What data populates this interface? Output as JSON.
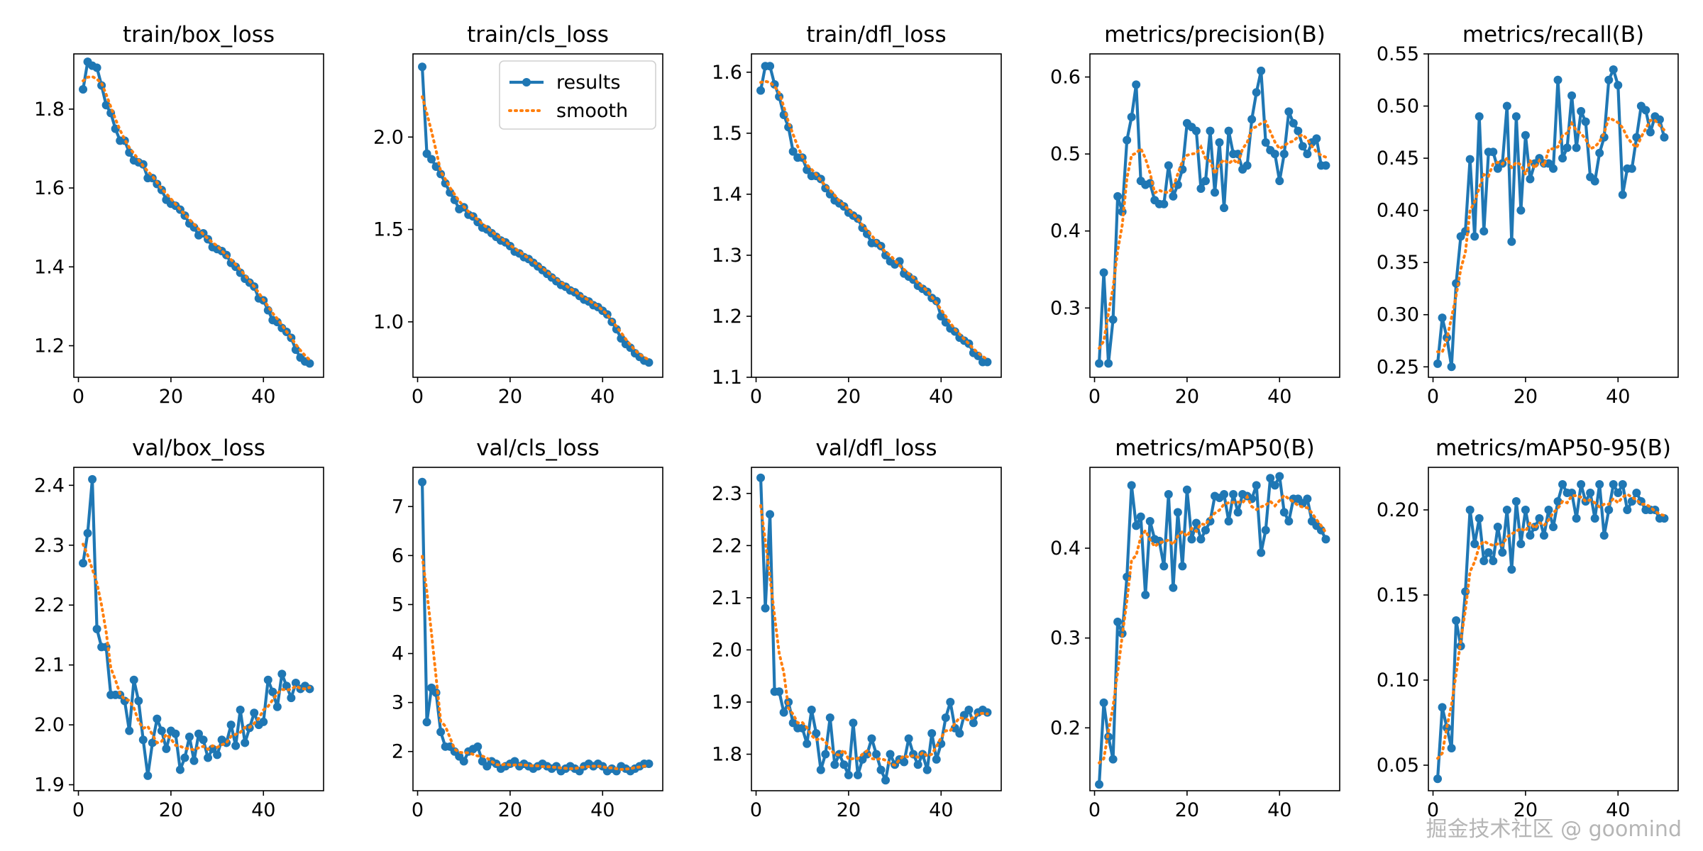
{
  "watermark": "掘金技术社区 @ goomind",
  "legend": {
    "labels": [
      "results",
      "smooth"
    ],
    "panel": "train/cls_loss",
    "placement": "top-right"
  },
  "colors": {
    "results": "#1f77b4",
    "smooth": "#ff7f0e",
    "axis": "#000000"
  },
  "chart_data": [
    {
      "type": "line",
      "title": "train/box_loss",
      "xlim": [
        -1,
        53
      ],
      "ylim": [
        1.12,
        1.94
      ],
      "xticks": [
        "0",
        "20",
        "40"
      ],
      "xtickvals": [
        0,
        20,
        40
      ],
      "yticks": [
        "1.2",
        "1.4",
        "1.6",
        "1.8"
      ],
      "ytickvals": [
        1.2,
        1.4,
        1.6,
        1.8
      ],
      "series": [
        {
          "name": "results",
          "values": [
            1.85,
            1.92,
            1.91,
            1.905,
            1.86,
            1.81,
            1.79,
            1.75,
            1.72,
            1.72,
            1.69,
            1.67,
            1.665,
            1.66,
            1.625,
            1.625,
            1.61,
            1.595,
            1.57,
            1.56,
            1.555,
            1.545,
            1.53,
            1.51,
            1.5,
            1.48,
            1.485,
            1.47,
            1.45,
            1.445,
            1.44,
            1.43,
            1.41,
            1.4,
            1.385,
            1.37,
            1.36,
            1.35,
            1.32,
            1.315,
            1.29,
            1.265,
            1.26,
            1.245,
            1.235,
            1.22,
            1.19,
            1.17,
            1.16,
            1.155
          ]
        }
      ]
    },
    {
      "type": "line",
      "title": "train/cls_loss",
      "xlim": [
        -1,
        53
      ],
      "ylim": [
        0.7,
        2.45
      ],
      "xticks": [
        "0",
        "20",
        "40"
      ],
      "xtickvals": [
        0,
        20,
        40
      ],
      "yticks": [
        "1.0",
        "1.5",
        "2.0"
      ],
      "ytickvals": [
        1.0,
        1.5,
        2.0
      ],
      "series": [
        {
          "name": "results",
          "values": [
            2.38,
            1.91,
            1.88,
            1.84,
            1.8,
            1.75,
            1.7,
            1.66,
            1.61,
            1.62,
            1.58,
            1.57,
            1.54,
            1.51,
            1.5,
            1.48,
            1.46,
            1.44,
            1.43,
            1.41,
            1.38,
            1.37,
            1.35,
            1.34,
            1.32,
            1.3,
            1.28,
            1.26,
            1.24,
            1.22,
            1.2,
            1.19,
            1.17,
            1.16,
            1.14,
            1.12,
            1.11,
            1.09,
            1.08,
            1.06,
            1.04,
            1.0,
            0.96,
            0.91,
            0.88,
            0.86,
            0.83,
            0.81,
            0.79,
            0.78
          ]
        }
      ]
    },
    {
      "type": "line",
      "title": "train/dfl_loss",
      "xlim": [
        -1,
        53
      ],
      "ylim": [
        1.1,
        1.63
      ],
      "xticks": [
        "0",
        "20",
        "40"
      ],
      "xtickvals": [
        0,
        20,
        40
      ],
      "yticks": [
        "1.1",
        "1.2",
        "1.3",
        "1.4",
        "1.5",
        "1.6"
      ],
      "ytickvals": [
        1.1,
        1.2,
        1.3,
        1.4,
        1.5,
        1.6
      ],
      "series": [
        {
          "name": "results",
          "values": [
            1.57,
            1.61,
            1.61,
            1.58,
            1.56,
            1.53,
            1.51,
            1.47,
            1.46,
            1.46,
            1.44,
            1.43,
            1.43,
            1.425,
            1.41,
            1.4,
            1.39,
            1.385,
            1.38,
            1.37,
            1.365,
            1.36,
            1.345,
            1.335,
            1.32,
            1.32,
            1.315,
            1.3,
            1.29,
            1.285,
            1.29,
            1.27,
            1.265,
            1.26,
            1.25,
            1.245,
            1.24,
            1.23,
            1.225,
            1.2,
            1.19,
            1.18,
            1.175,
            1.165,
            1.16,
            1.155,
            1.14,
            1.135,
            1.125,
            1.125
          ]
        }
      ]
    },
    {
      "type": "line",
      "title": "metrics/precision(B)",
      "xlim": [
        -1,
        53
      ],
      "ylim": [
        0.21,
        0.63
      ],
      "xticks": [
        "0",
        "20",
        "40"
      ],
      "xtickvals": [
        0,
        20,
        40
      ],
      "yticks": [
        "0.3",
        "0.4",
        "0.5",
        "0.6"
      ],
      "ytickvals": [
        0.3,
        0.4,
        0.5,
        0.6
      ],
      "series": [
        {
          "name": "results",
          "values": [
            0.228,
            0.346,
            0.228,
            0.285,
            0.445,
            0.425,
            0.518,
            0.548,
            0.59,
            0.465,
            0.46,
            0.462,
            0.44,
            0.435,
            0.435,
            0.485,
            0.445,
            0.46,
            0.48,
            0.54,
            0.535,
            0.53,
            0.455,
            0.465,
            0.53,
            0.45,
            0.515,
            0.43,
            0.53,
            0.5,
            0.5,
            0.48,
            0.485,
            0.545,
            0.58,
            0.608,
            0.515,
            0.505,
            0.5,
            0.465,
            0.5,
            0.555,
            0.54,
            0.53,
            0.51,
            0.5,
            0.515,
            0.52,
            0.485,
            0.485
          ]
        }
      ]
    },
    {
      "type": "line",
      "title": "metrics/recall(B)",
      "xlim": [
        -1,
        53
      ],
      "ylim": [
        0.24,
        0.55
      ],
      "xticks": [
        "0",
        "20",
        "40"
      ],
      "xtickvals": [
        0,
        20,
        40
      ],
      "yticks": [
        "0.25",
        "0.30",
        "0.35",
        "0.40",
        "0.45",
        "0.50",
        "0.55"
      ],
      "ytickvals": [
        0.25,
        0.3,
        0.35,
        0.4,
        0.45,
        0.5,
        0.55
      ],
      "series": [
        {
          "name": "results",
          "values": [
            0.253,
            0.297,
            0.278,
            0.25,
            0.33,
            0.375,
            0.38,
            0.449,
            0.375,
            0.49,
            0.38,
            0.456,
            0.456,
            0.44,
            0.445,
            0.5,
            0.37,
            0.49,
            0.4,
            0.472,
            0.43,
            0.445,
            0.45,
            0.445,
            0.445,
            0.44,
            0.525,
            0.45,
            0.46,
            0.51,
            0.46,
            0.495,
            0.485,
            0.432,
            0.428,
            0.455,
            0.47,
            0.525,
            0.535,
            0.52,
            0.415,
            0.44,
            0.44,
            0.47,
            0.5,
            0.496,
            0.475,
            0.49,
            0.487,
            0.47
          ]
        }
      ]
    },
    {
      "type": "line",
      "title": "val/box_loss",
      "xlim": [
        -1,
        53
      ],
      "ylim": [
        1.89,
        2.43
      ],
      "xticks": [
        "0",
        "20",
        "40"
      ],
      "xtickvals": [
        0,
        20,
        40
      ],
      "yticks": [
        "1.9",
        "2.0",
        "2.1",
        "2.2",
        "2.3",
        "2.4"
      ],
      "ytickvals": [
        1.9,
        2.0,
        2.1,
        2.2,
        2.3,
        2.4
      ],
      "series": [
        {
          "name": "results",
          "values": [
            2.27,
            2.32,
            2.41,
            2.16,
            2.13,
            2.13,
            2.05,
            2.05,
            2.05,
            2.04,
            1.99,
            2.075,
            2.04,
            1.975,
            1.915,
            1.97,
            2.01,
            1.99,
            1.96,
            1.99,
            1.985,
            1.925,
            1.945,
            1.98,
            1.94,
            1.985,
            1.975,
            1.945,
            1.96,
            1.95,
            1.975,
            1.97,
            2.0,
            1.965,
            2.025,
            1.97,
            1.995,
            2.02,
            2.0,
            2.005,
            2.075,
            2.055,
            2.03,
            2.085,
            2.065,
            2.045,
            2.07,
            2.06,
            2.065,
            2.06
          ]
        }
      ]
    },
    {
      "type": "line",
      "title": "val/cls_loss",
      "xlim": [
        -1,
        53
      ],
      "ylim": [
        1.2,
        7.8
      ],
      "xticks": [
        "0",
        "20",
        "40"
      ],
      "xtickvals": [
        0,
        20,
        40
      ],
      "yticks": [
        "2",
        "3",
        "4",
        "5",
        "6",
        "7"
      ],
      "ytickvals": [
        2,
        3,
        4,
        5,
        6,
        7
      ],
      "series": [
        {
          "name": "results",
          "values": [
            7.5,
            2.6,
            3.3,
            3.2,
            2.4,
            2.1,
            2.1,
            2.0,
            1.9,
            1.8,
            2.0,
            2.05,
            2.1,
            1.8,
            1.7,
            1.8,
            1.75,
            1.65,
            1.7,
            1.75,
            1.8,
            1.7,
            1.75,
            1.7,
            1.65,
            1.7,
            1.75,
            1.7,
            1.65,
            1.7,
            1.6,
            1.65,
            1.7,
            1.65,
            1.6,
            1.7,
            1.75,
            1.7,
            1.75,
            1.7,
            1.6,
            1.65,
            1.6,
            1.7,
            1.65,
            1.6,
            1.65,
            1.7,
            1.75,
            1.75
          ]
        }
      ]
    },
    {
      "type": "line",
      "title": "val/dfl_loss",
      "xlim": [
        -1,
        53
      ],
      "ylim": [
        1.73,
        2.35
      ],
      "xticks": [
        "0",
        "20",
        "40"
      ],
      "xtickvals": [
        0,
        20,
        40
      ],
      "yticks": [
        "1.8",
        "1.9",
        "2.0",
        "2.1",
        "2.2",
        "2.3"
      ],
      "ytickvals": [
        1.8,
        1.9,
        2.0,
        2.1,
        2.2,
        2.3
      ],
      "series": [
        {
          "name": "results",
          "values": [
            2.33,
            2.08,
            2.26,
            1.92,
            1.92,
            1.88,
            1.9,
            1.86,
            1.85,
            1.85,
            1.82,
            1.885,
            1.84,
            1.77,
            1.8,
            1.87,
            1.78,
            1.8,
            1.78,
            1.76,
            1.86,
            1.76,
            1.79,
            1.8,
            1.83,
            1.8,
            1.77,
            1.75,
            1.8,
            1.78,
            1.79,
            1.785,
            1.83,
            1.8,
            1.78,
            1.8,
            1.77,
            1.84,
            1.79,
            1.82,
            1.87,
            1.9,
            1.85,
            1.84,
            1.875,
            1.885,
            1.86,
            1.88,
            1.885,
            1.88
          ]
        }
      ]
    },
    {
      "type": "line",
      "title": "metrics/mAP50(B)",
      "xlim": [
        -1,
        53
      ],
      "ylim": [
        0.13,
        0.49
      ],
      "xticks": [
        "0",
        "20",
        "40"
      ],
      "xtickvals": [
        0,
        20,
        40
      ],
      "yticks": [
        "0.2",
        "0.3",
        "0.4"
      ],
      "ytickvals": [
        0.2,
        0.3,
        0.4
      ],
      "series": [
        {
          "name": "results",
          "values": [
            0.137,
            0.228,
            0.19,
            0.165,
            0.318,
            0.305,
            0.368,
            0.47,
            0.425,
            0.435,
            0.348,
            0.43,
            0.41,
            0.408,
            0.38,
            0.46,
            0.356,
            0.44,
            0.38,
            0.465,
            0.41,
            0.428,
            0.41,
            0.42,
            0.43,
            0.458,
            0.456,
            0.46,
            0.43,
            0.46,
            0.44,
            0.46,
            0.458,
            0.455,
            0.47,
            0.395,
            0.42,
            0.478,
            0.47,
            0.48,
            0.44,
            0.43,
            0.455,
            0.455,
            0.45,
            0.455,
            0.43,
            0.425,
            0.42,
            0.41
          ]
        }
      ]
    },
    {
      "type": "line",
      "title": "metrics/mAP50-95(B)",
      "xlim": [
        -1,
        53
      ],
      "ylim": [
        0.035,
        0.225
      ],
      "xticks": [
        "0",
        "20",
        "40"
      ],
      "xtickvals": [
        0,
        20,
        40
      ],
      "yticks": [
        "0.05",
        "0.10",
        "0.15",
        "0.20"
      ],
      "ytickvals": [
        0.05,
        0.1,
        0.15,
        0.2
      ],
      "series": [
        {
          "name": "results",
          "values": [
            0.042,
            0.084,
            0.072,
            0.06,
            0.135,
            0.12,
            0.152,
            0.2,
            0.18,
            0.195,
            0.17,
            0.175,
            0.17,
            0.19,
            0.175,
            0.2,
            0.165,
            0.205,
            0.18,
            0.2,
            0.185,
            0.19,
            0.195,
            0.185,
            0.2,
            0.19,
            0.205,
            0.215,
            0.21,
            0.21,
            0.195,
            0.215,
            0.205,
            0.21,
            0.195,
            0.215,
            0.185,
            0.2,
            0.215,
            0.21,
            0.215,
            0.2,
            0.205,
            0.21,
            0.205,
            0.2,
            0.2,
            0.2,
            0.195,
            0.195
          ]
        }
      ]
    }
  ]
}
